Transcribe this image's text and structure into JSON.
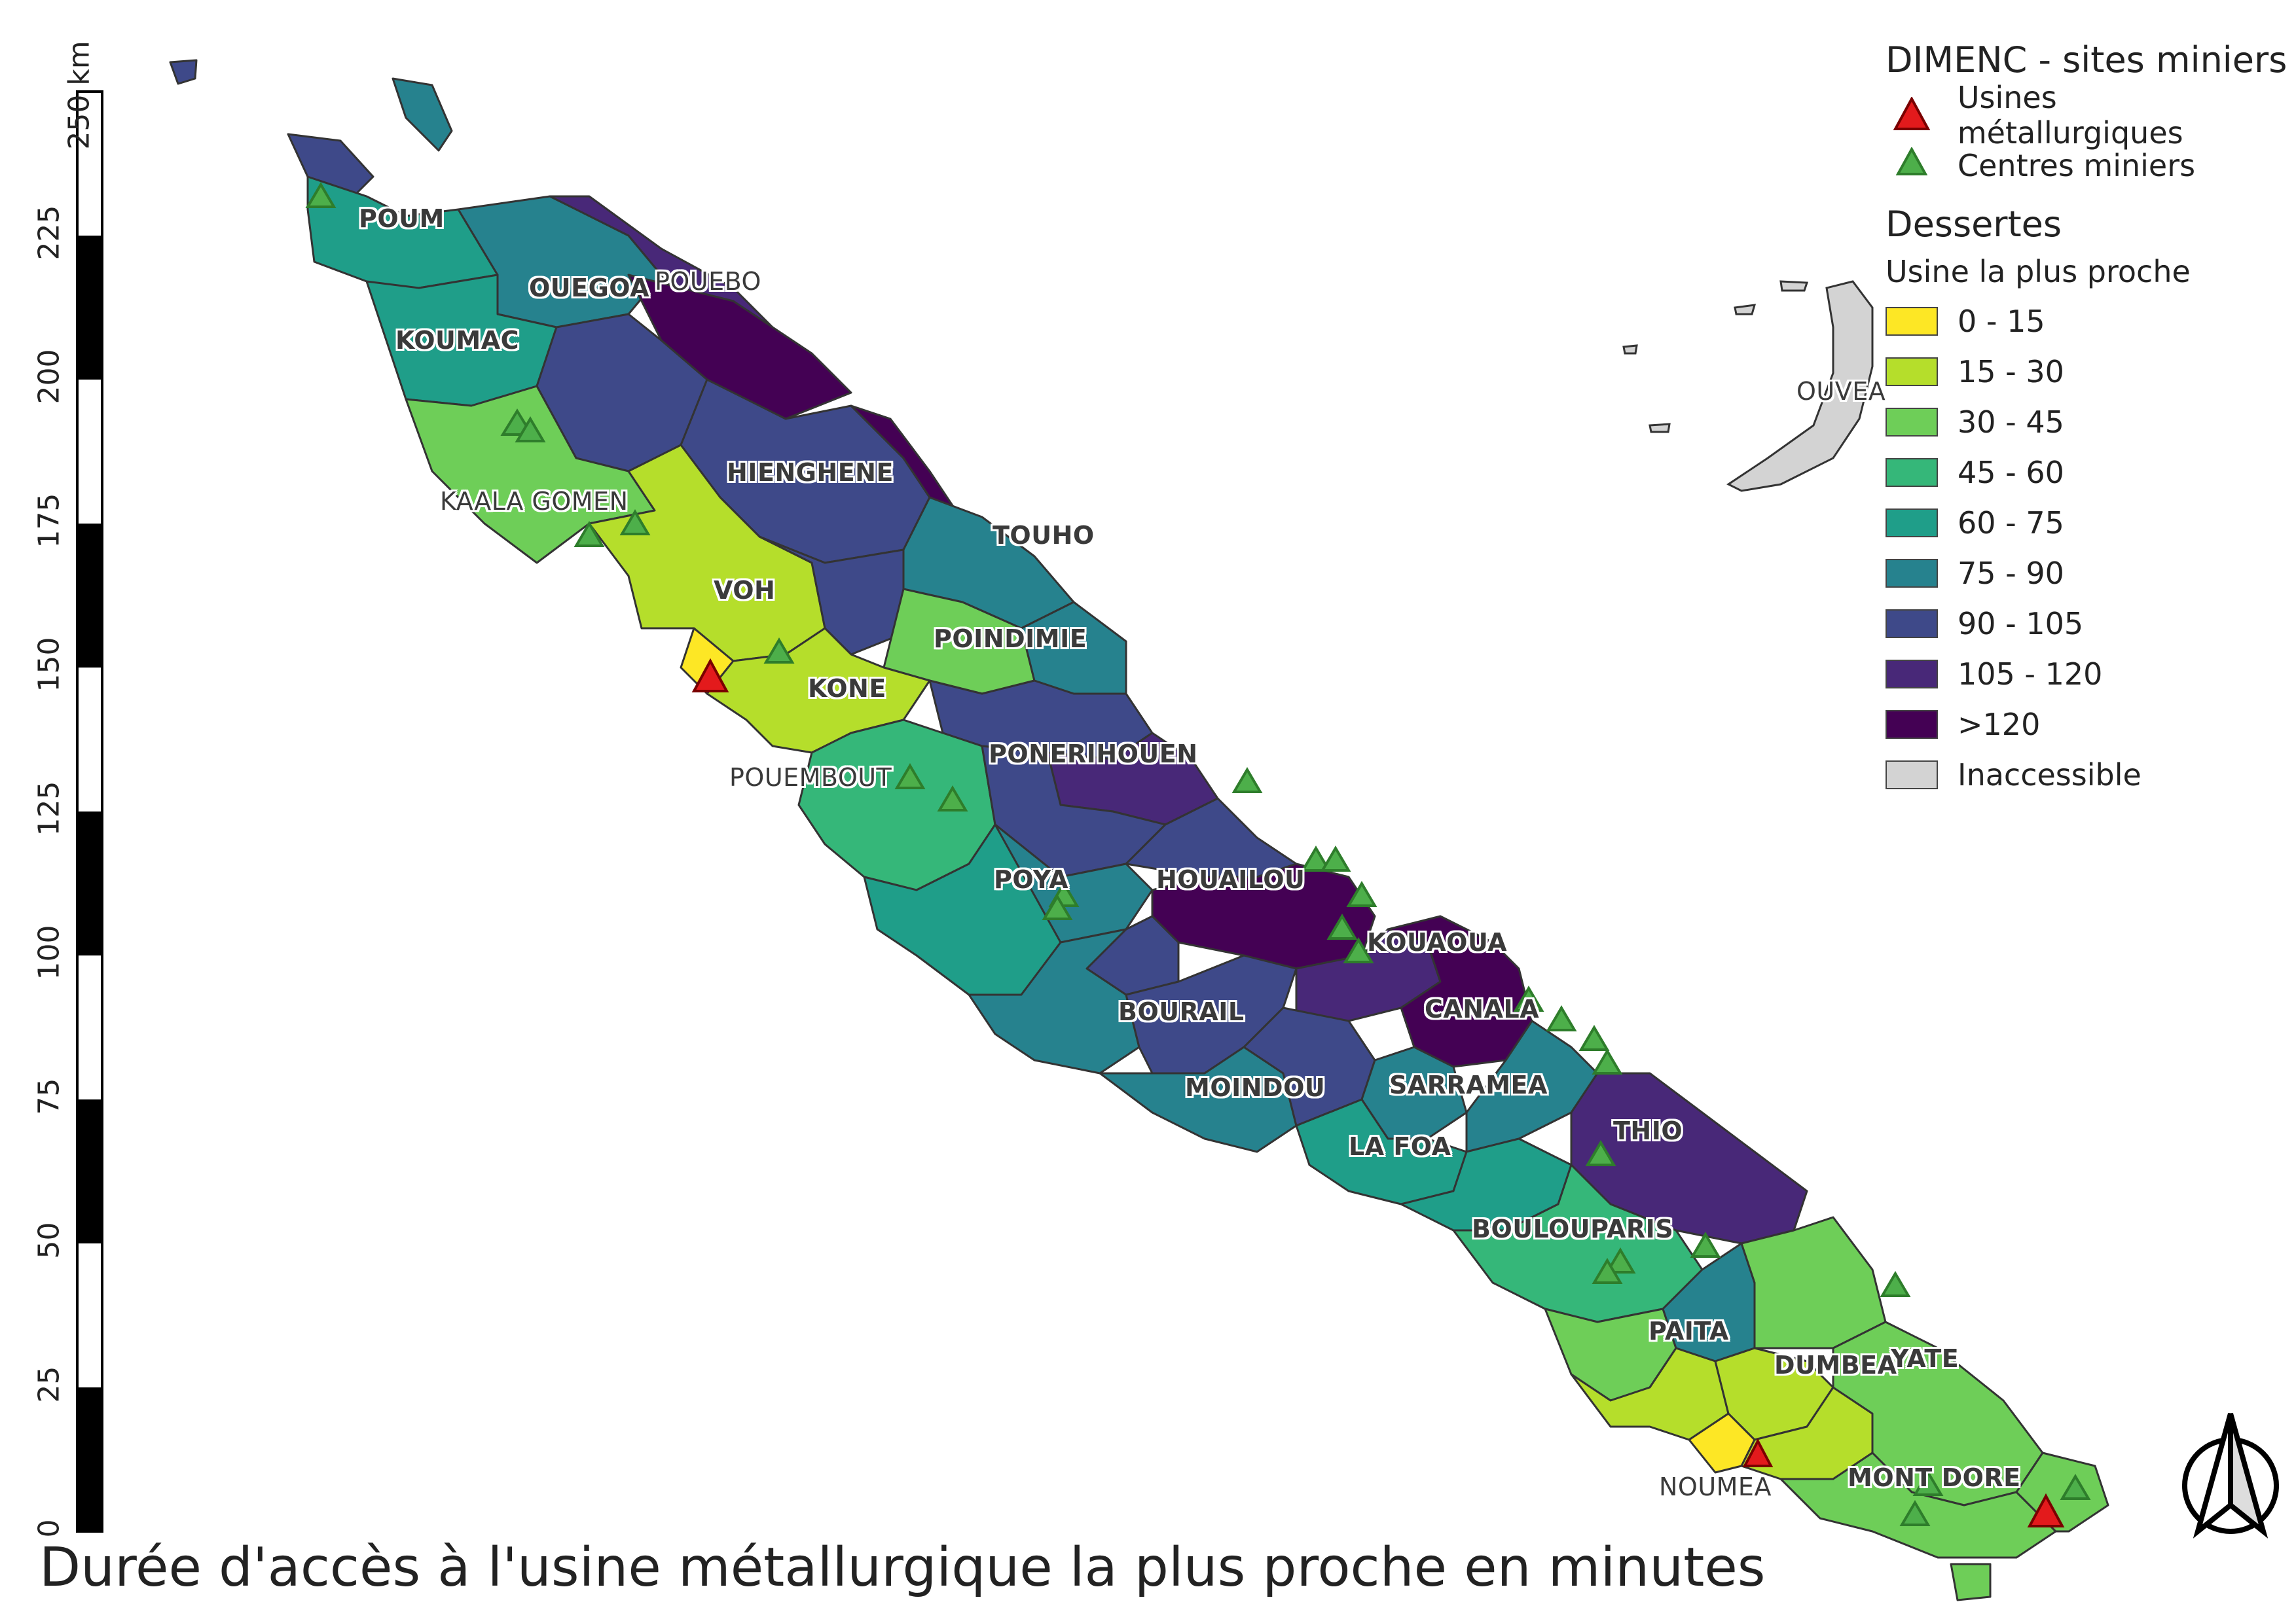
{
  "map": {
    "title": "Durée d'accès à l'usine métallurgique la plus proche en minutes",
    "scale_bar": {
      "unit": "250 km",
      "ticks": [
        "0",
        "25",
        "50",
        "75",
        "100",
        "125",
        "150",
        "175",
        "200",
        "225"
      ]
    },
    "legend": {
      "sites_title": "DIMENC - sites miniers",
      "usines_label": "Usines métallurgiques",
      "centres_label": "Centres miniers",
      "dessertes_title": "Dessertes",
      "usine_sub": "Usine la plus proche",
      "classes": [
        {
          "label": "0 - 15",
          "color": "#fde725"
        },
        {
          "label": "15 - 30",
          "color": "#b5de2b"
        },
        {
          "label": "30 - 45",
          "color": "#6ece58"
        },
        {
          "label": "45 - 60",
          "color": "#35b779"
        },
        {
          "label": "60 - 75",
          "color": "#1f9e89"
        },
        {
          "label": "75 - 90",
          "color": "#26828e"
        },
        {
          "label": "90 - 105",
          "color": "#3e4989"
        },
        {
          "label": "105 - 120",
          "color": "#482878"
        },
        {
          "label": ">120",
          "color": "#440154"
        },
        {
          "label": "Inaccessible",
          "color": "#d3d3d3"
        }
      ]
    },
    "places": {
      "poum": "POUM",
      "ouegoa": "OUEGOA",
      "pouebo": "POUEBO",
      "koumac": "KOUMAC",
      "kaala_gomen": "KAALA GOMEN",
      "hienghene": "HIENGHENE",
      "touho": "TOUHO",
      "voh": "VOH",
      "poindimie": "POINDIMIE",
      "kone": "KONE",
      "ponerihouen": "PONERIHOUEN",
      "pouembout": "POUEMBOUT",
      "poya": "POYA",
      "houailou": "HOUAILOU",
      "kouaoua": "KOUAOUA",
      "canala": "CANALA",
      "bourail": "BOURAIL",
      "moindou": "MOINDOU",
      "sarramea": "SARRAMEA",
      "thio": "THIO",
      "la_foa": "LA FOA",
      "boulouparis": "BOULOUPARIS",
      "paita": "PAITA",
      "dumbea": "DUMBEA",
      "yate": "YATE",
      "noumea": "NOUMEA",
      "mont_dore": "MONT DORE",
      "ouvea": "OUVEA"
    },
    "colors": {
      "usine": "#e31a1c",
      "centre": "#4daf4a",
      "outline": "#333333"
    }
  }
}
